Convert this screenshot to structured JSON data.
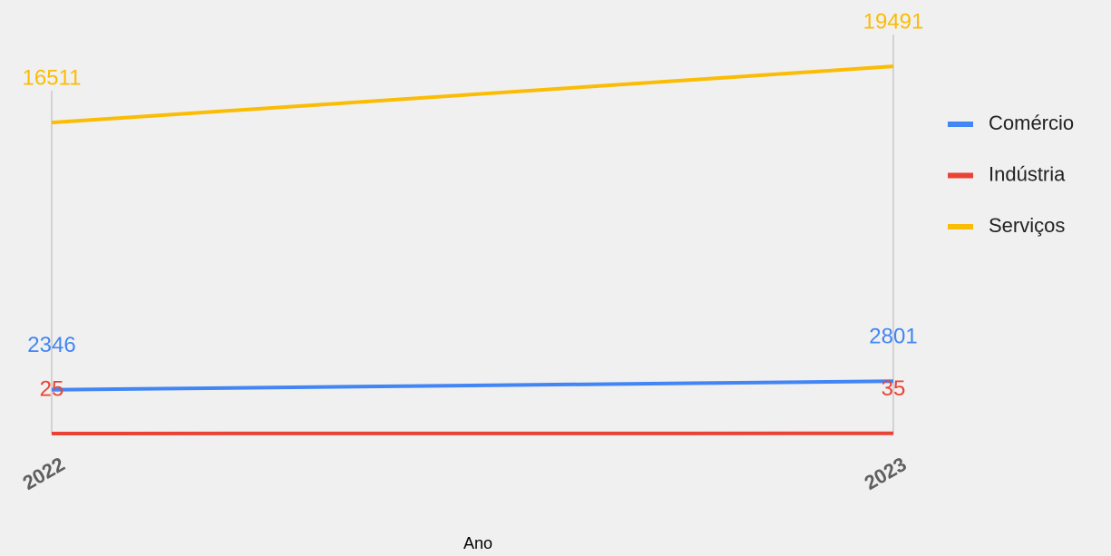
{
  "chart_data": {
    "type": "line",
    "x_label": "Ano",
    "categories": [
      "2022",
      "2023"
    ],
    "series": [
      {
        "name": "Comércio",
        "color": "#4285f4",
        "values": [
          2346,
          2801
        ]
      },
      {
        "name": "Indústria",
        "color": "#ea4335",
        "values": [
          25,
          35
        ]
      },
      {
        "name": "Serviços",
        "color": "#fbbc04",
        "values": [
          16511,
          19491
        ]
      }
    ],
    "ylim": [
      0,
      22000
    ],
    "legend": "right"
  }
}
